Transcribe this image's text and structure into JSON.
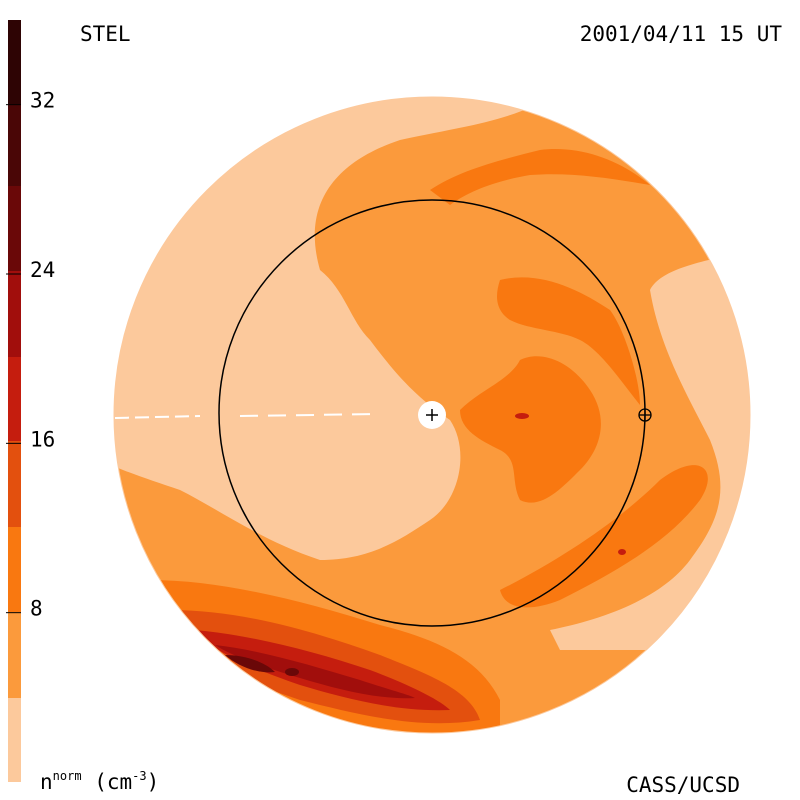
{
  "header": {
    "left_label": "STEL",
    "date_label": "2001/04/11 15 UT"
  },
  "footer": {
    "unit_main": "n",
    "unit_sup": "norm",
    "unit_paren": "(cm",
    "unit_exp": "-3",
    "unit_close": ")",
    "credit": "CASS/UCSD"
  },
  "colors": {
    "level_0": "#fcc99c",
    "level_1": "#fb9a3c",
    "level_2": "#f97810",
    "level_3": "#e3500e",
    "level_4": "#c51d0e",
    "level_5": "#a10e0c",
    "level_6": "#6a0808",
    "level_7": "#2e0404"
  },
  "chart_data": {
    "type": "heatmap",
    "title": "STEL",
    "timestamp": "2001/04/11 15 UT",
    "colorbar": {
      "label": "n^norm (cm^-3)",
      "range": [
        0,
        36
      ],
      "ticks": [
        8,
        16,
        24,
        32
      ],
      "levels": [
        0,
        4,
        8,
        12,
        16,
        20,
        24,
        28,
        32,
        36
      ]
    },
    "markers": [
      {
        "name": "Sun",
        "symbol": "+"
      },
      {
        "name": "Earth",
        "symbol": "⊕"
      }
    ],
    "reference_circle": "Earth orbit (1 AU)"
  }
}
